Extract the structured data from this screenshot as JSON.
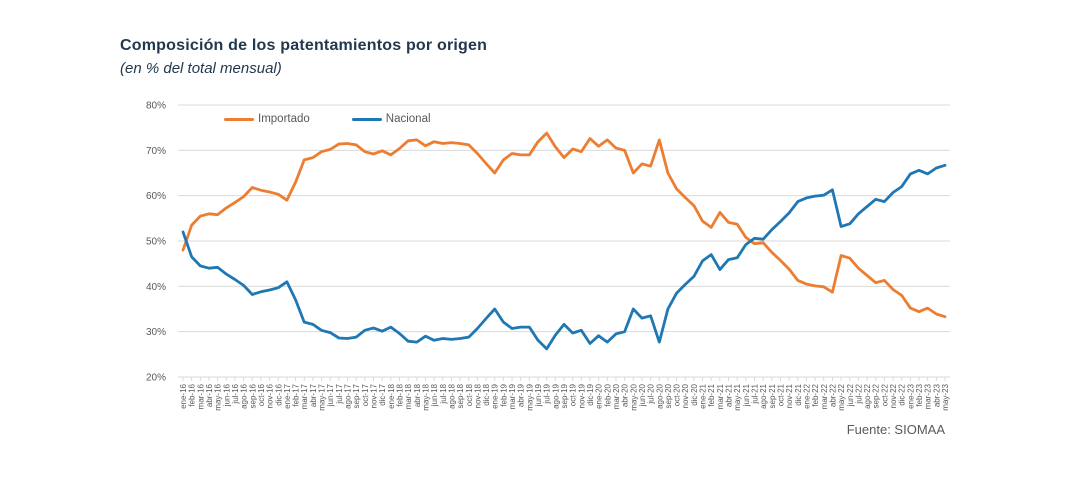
{
  "header": {
    "title": "Composición de los patentamientos por origen",
    "subtitle": "(en % del total mensual)"
  },
  "source": "Fuente: SIOMAA",
  "colors": {
    "importado": "#ED7D31",
    "nacional": "#1F77B4",
    "gridline": "#D9D9D9",
    "axis_text": "#595959",
    "title_text": "#22384F",
    "legend_text": "#595959",
    "background": "#FFFFFF"
  },
  "chart_data": {
    "type": "line",
    "title": "Composición de los patentamientos por origen",
    "subtitle": "(en % del total mensual)",
    "legend_position": "top-inside",
    "grid": "horizontal",
    "y_axis": {
      "min": 20,
      "max": 80,
      "step": 10,
      "tick_labels": [
        "80%",
        "70%",
        "60%",
        "50%",
        "40%",
        "30%",
        "20%"
      ]
    },
    "x_labels": [
      "ene-16",
      "feb-16",
      "mar-16",
      "abr-16",
      "may-16",
      "jun-16",
      "jul-16",
      "ago-16",
      "sep-16",
      "oct-16",
      "nov-16",
      "dic-16",
      "ene-17",
      "feb-17",
      "mar-17",
      "abr-17",
      "may-17",
      "jun-17",
      "jul-17",
      "ago-17",
      "sep-17",
      "oct-17",
      "nov-17",
      "dic-17",
      "ene-18",
      "feb-18",
      "mar-18",
      "abr-18",
      "may-18",
      "jun-18",
      "jul-18",
      "ago-18",
      "sep-18",
      "oct-18",
      "nov-18",
      "dic-18",
      "ene-19",
      "feb-19",
      "mar-19",
      "abr-19",
      "may-19",
      "jun-19",
      "jul-19",
      "ago-19",
      "sep-19",
      "oct-19",
      "nov-19",
      "dic-19",
      "ene-20",
      "feb-20",
      "mar-20",
      "abr-20",
      "may-20",
      "jun-20",
      "jul-20",
      "ago-20",
      "sep-20",
      "oct-20",
      "nov-20",
      "dic-20",
      "ene-21",
      "feb-21",
      "mar-21",
      "abr-21",
      "may-21",
      "jun-21",
      "jul-21",
      "ago-21",
      "sep-21",
      "oct-21",
      "nov-21",
      "dic-21",
      "ene-22",
      "feb-22",
      "mar-22",
      "abr-22",
      "may-22",
      "jun-22",
      "jul-22",
      "ago-22",
      "sep-22",
      "oct-22",
      "nov-22",
      "dic-22",
      "ene-23",
      "feb-23",
      "mar-23",
      "abr-23",
      "may-23"
    ],
    "series": [
      {
        "name": "Importado",
        "color": "#ED7D31",
        "values": [
          48,
          53.5,
          55.5,
          56,
          55.8,
          57.3,
          58.5,
          59.8,
          61.8,
          61.2,
          60.8,
          60.3,
          59,
          63,
          67.9,
          68.4,
          69.7,
          70.2,
          71.4,
          71.5,
          71.2,
          69.7,
          69.2,
          69.9,
          69,
          70.4,
          72.1,
          72.3,
          71,
          71.9,
          71.5,
          71.7,
          71.5,
          71.2,
          69.3,
          67.1,
          65,
          67.9,
          69.3,
          69,
          69,
          71.9,
          73.8,
          70.8,
          68.4,
          70.3,
          69.7,
          72.6,
          70.9,
          72.3,
          70.5,
          70,
          65,
          67,
          66.5,
          72.3,
          65,
          61.5,
          59.6,
          57.8,
          54.4,
          53,
          56.3,
          54.1,
          53.7,
          50.8,
          49.4,
          49.6,
          47.5,
          45.7,
          43.8,
          41.3,
          40.5,
          40.1,
          39.9,
          38.7,
          46.8,
          46.2,
          44,
          42.4,
          40.8,
          41.3,
          39.3,
          38,
          35.2,
          34.4,
          35.2,
          33.9,
          33.3
        ]
      },
      {
        "name": "Nacional",
        "color": "#1F77B4",
        "values": [
          52,
          46.5,
          44.5,
          44,
          44.2,
          42.7,
          41.5,
          40.2,
          38.2,
          38.8,
          39.2,
          39.7,
          41,
          37,
          32.1,
          31.6,
          30.3,
          29.8,
          28.6,
          28.5,
          28.8,
          30.3,
          30.8,
          30.1,
          31,
          29.6,
          27.9,
          27.7,
          29,
          28.1,
          28.5,
          28.3,
          28.5,
          28.8,
          30.7,
          32.9,
          35,
          32.1,
          30.7,
          31,
          31,
          28.1,
          26.2,
          29.2,
          31.6,
          29.7,
          30.3,
          27.4,
          29.1,
          27.7,
          29.5,
          30,
          35,
          33,
          33.5,
          27.7,
          35,
          38.5,
          40.4,
          42.2,
          45.6,
          47,
          43.7,
          45.9,
          46.3,
          49.2,
          50.6,
          50.4,
          52.5,
          54.3,
          56.2,
          58.7,
          59.5,
          59.9,
          60.1,
          61.3,
          53.2,
          53.8,
          56,
          57.6,
          59.2,
          58.7,
          60.7,
          62,
          64.8,
          65.6,
          64.8,
          66.1,
          66.7
        ]
      }
    ]
  }
}
